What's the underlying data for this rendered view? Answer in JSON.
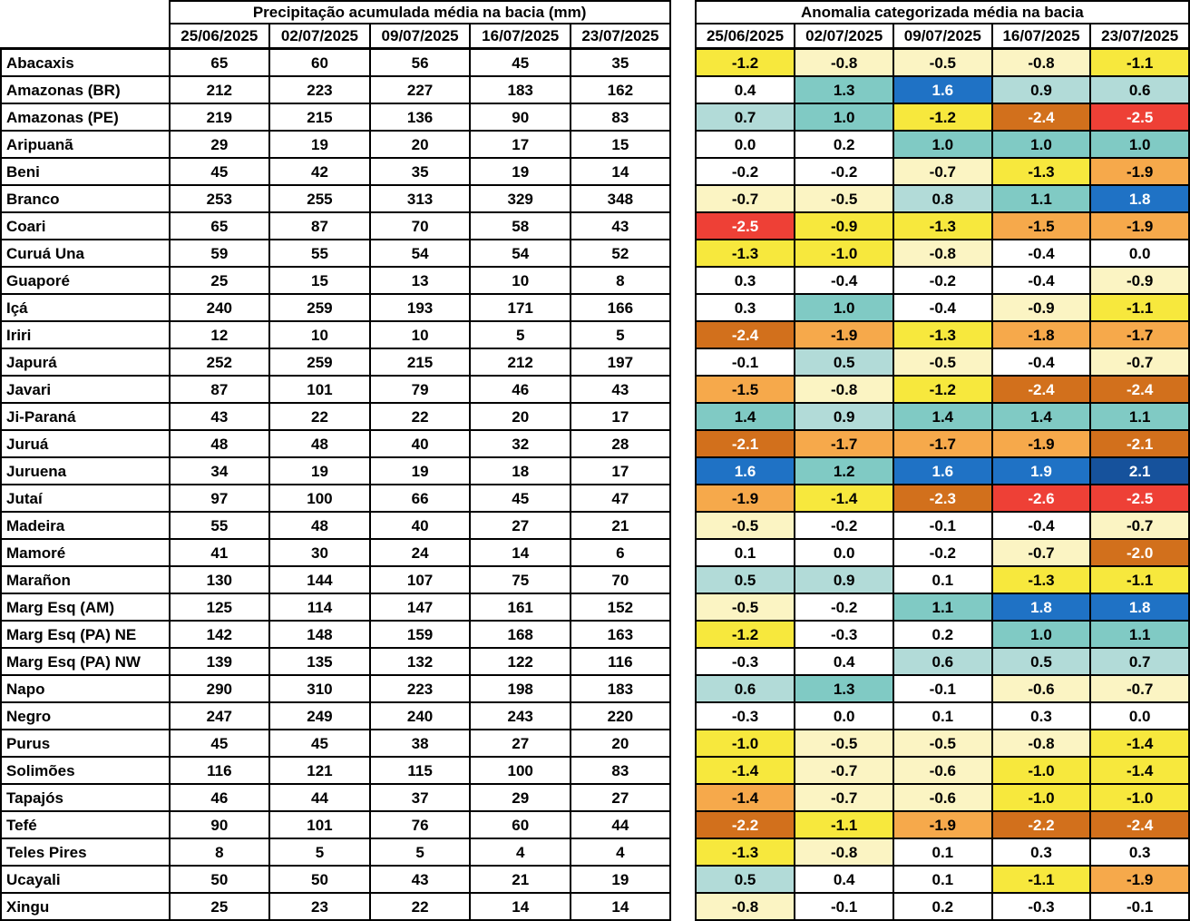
{
  "chart_data": [
    {
      "type": "table",
      "title": "Precipitação acumulada média na bacia (mm)",
      "columns": [
        "25/06/2025",
        "02/07/2025",
        "09/07/2025",
        "16/07/2025",
        "23/07/2025"
      ],
      "row_labels": [
        "Abacaxis",
        "Amazonas (BR)",
        "Amazonas (PE)",
        "Aripuanã",
        "Beni",
        "Branco",
        "Coari",
        "Curuá Una",
        "Guaporé",
        "Içá",
        "Iriri",
        "Japurá",
        "Javari",
        "Ji-Paraná",
        "Juruá",
        "Juruena",
        "Jutaí",
        "Madeira",
        "Mamoré",
        "Marañon",
        "Marg Esq (AM)",
        "Marg Esq (PA) NE",
        "Marg Esq (PA) NW",
        "Napo",
        "Negro",
        "Purus",
        "Solimões",
        "Tapajós",
        "Tefé",
        "Teles Pires",
        "Ucayali",
        "Xingu"
      ],
      "values": [
        [
          65,
          60,
          56,
          45,
          35
        ],
        [
          212,
          223,
          227,
          183,
          162
        ],
        [
          219,
          215,
          136,
          90,
          83
        ],
        [
          29,
          19,
          20,
          17,
          15
        ],
        [
          45,
          42,
          35,
          19,
          14
        ],
        [
          253,
          255,
          313,
          329,
          348
        ],
        [
          65,
          87,
          70,
          58,
          43
        ],
        [
          59,
          55,
          54,
          54,
          52
        ],
        [
          25,
          15,
          13,
          10,
          8
        ],
        [
          240,
          259,
          193,
          171,
          166
        ],
        [
          12,
          10,
          10,
          5,
          5
        ],
        [
          252,
          259,
          215,
          212,
          197
        ],
        [
          87,
          101,
          79,
          46,
          43
        ],
        [
          43,
          22,
          22,
          20,
          17
        ],
        [
          48,
          48,
          40,
          32,
          28
        ],
        [
          34,
          19,
          19,
          18,
          17
        ],
        [
          97,
          100,
          66,
          45,
          47
        ],
        [
          55,
          48,
          40,
          27,
          21
        ],
        [
          41,
          30,
          24,
          14,
          6
        ],
        [
          130,
          144,
          107,
          75,
          70
        ],
        [
          125,
          114,
          147,
          161,
          152
        ],
        [
          142,
          148,
          159,
          168,
          163
        ],
        [
          139,
          135,
          132,
          122,
          116
        ],
        [
          290,
          310,
          223,
          198,
          183
        ],
        [
          247,
          249,
          240,
          243,
          220
        ],
        [
          45,
          45,
          38,
          27,
          20
        ],
        [
          116,
          121,
          115,
          100,
          83
        ],
        [
          46,
          44,
          37,
          29,
          27
        ],
        [
          90,
          101,
          76,
          60,
          44
        ],
        [
          8,
          5,
          5,
          4,
          4
        ],
        [
          50,
          50,
          43,
          21,
          19
        ],
        [
          25,
          23,
          22,
          14,
          14
        ]
      ]
    },
    {
      "type": "heatmap",
      "title": "Anomalia categorizada média na bacia",
      "columns": [
        "25/06/2025",
        "02/07/2025",
        "09/07/2025",
        "16/07/2025",
        "23/07/2025"
      ],
      "row_labels": [
        "Abacaxis",
        "Amazonas (BR)",
        "Amazonas (PE)",
        "Aripuanã",
        "Beni",
        "Branco",
        "Coari",
        "Curuá Una",
        "Guaporé",
        "Içá",
        "Iriri",
        "Japurá",
        "Javari",
        "Ji-Paraná",
        "Juruá",
        "Juruena",
        "Jutaí",
        "Madeira",
        "Mamoré",
        "Marañon",
        "Marg Esq (AM)",
        "Marg Esq (PA) NE",
        "Marg Esq (PA) NW",
        "Napo",
        "Negro",
        "Purus",
        "Solimões",
        "Tapajós",
        "Tefé",
        "Teles Pires",
        "Ucayali",
        "Xingu"
      ],
      "values": [
        [
          "-1.2",
          "-0.8",
          "-0.5",
          "-0.8",
          "-1.1"
        ],
        [
          "0.4",
          "1.3",
          "1.6",
          "0.9",
          "0.6"
        ],
        [
          "0.7",
          "1.0",
          "-1.2",
          "-2.4",
          "-2.5"
        ],
        [
          "0.0",
          "0.2",
          "1.0",
          "1.0",
          "1.0"
        ],
        [
          "-0.2",
          "-0.2",
          "-0.7",
          "-1.3",
          "-1.9"
        ],
        [
          "-0.7",
          "-0.5",
          "0.8",
          "1.1",
          "1.8"
        ],
        [
          "-2.5",
          "-0.9",
          "-1.3",
          "-1.5",
          "-1.9"
        ],
        [
          "-1.3",
          "-1.0",
          "-0.8",
          "-0.4",
          "0.0"
        ],
        [
          "0.3",
          "-0.4",
          "-0.2",
          "-0.4",
          "-0.9"
        ],
        [
          "0.3",
          "1.0",
          "-0.4",
          "-0.9",
          "-1.1"
        ],
        [
          "-2.4",
          "-1.9",
          "-1.3",
          "-1.8",
          "-1.7"
        ],
        [
          "-0.1",
          "0.5",
          "-0.5",
          "-0.4",
          "-0.7"
        ],
        [
          "-1.5",
          "-0.8",
          "-1.2",
          "-2.4",
          "-2.4"
        ],
        [
          "1.4",
          "0.9",
          "1.4",
          "1.4",
          "1.1"
        ],
        [
          "-2.1",
          "-1.7",
          "-1.7",
          "-1.9",
          "-2.1"
        ],
        [
          "1.6",
          "1.2",
          "1.6",
          "1.9",
          "2.1"
        ],
        [
          "-1.9",
          "-1.4",
          "-2.3",
          "-2.6",
          "-2.5"
        ],
        [
          "-0.5",
          "-0.2",
          "-0.1",
          "-0.4",
          "-0.7"
        ],
        [
          "0.1",
          "0.0",
          "-0.2",
          "-0.7",
          "-2.0"
        ],
        [
          "0.5",
          "0.9",
          "0.1",
          "-1.3",
          "-1.1"
        ],
        [
          "-0.5",
          "-0.2",
          "1.1",
          "1.8",
          "1.8"
        ],
        [
          "-1.2",
          "-0.3",
          "0.2",
          "1.0",
          "1.1"
        ],
        [
          "-0.3",
          "0.4",
          "0.6",
          "0.5",
          "0.7"
        ],
        [
          "0.6",
          "1.3",
          "-0.1",
          "-0.6",
          "-0.7"
        ],
        [
          "-0.3",
          "0.0",
          "0.1",
          "0.3",
          "0.0"
        ],
        [
          "-1.0",
          "-0.5",
          "-0.5",
          "-0.8",
          "-1.4"
        ],
        [
          "-1.4",
          "-0.7",
          "-0.6",
          "-1.0",
          "-1.4"
        ],
        [
          "-1.4",
          "-0.7",
          "-0.6",
          "-1.0",
          "-1.0"
        ],
        [
          "-2.2",
          "-1.1",
          "-1.9",
          "-2.2",
          "-2.4"
        ],
        [
          "-1.3",
          "-0.8",
          "0.1",
          "0.3",
          "0.3"
        ],
        [
          "0.5",
          "0.4",
          "0.1",
          "-1.1",
          "-1.9"
        ],
        [
          "-0.8",
          "-0.1",
          "0.2",
          "-0.3",
          "-0.1"
        ]
      ],
      "cell_colors": [
        [
          "Y",
          "PY",
          "PY",
          "PY",
          "Y"
        ],
        [
          "W",
          "T",
          "B",
          "LT",
          "LT"
        ],
        [
          "LT",
          "T",
          "Y",
          "DO",
          "R"
        ],
        [
          "W",
          "W",
          "T",
          "T",
          "T"
        ],
        [
          "W",
          "W",
          "PY",
          "Y",
          "O"
        ],
        [
          "PY",
          "PY",
          "LT",
          "T",
          "B"
        ],
        [
          "R",
          "Y",
          "Y",
          "O",
          "O"
        ],
        [
          "Y",
          "Y",
          "PY",
          "W",
          "W"
        ],
        [
          "W",
          "W",
          "W",
          "W",
          "PY"
        ],
        [
          "W",
          "T",
          "W",
          "PY",
          "Y"
        ],
        [
          "DO",
          "O",
          "Y",
          "O",
          "O"
        ],
        [
          "W",
          "LT",
          "PY",
          "W",
          "PY"
        ],
        [
          "O",
          "PY",
          "Y",
          "DO",
          "DO"
        ],
        [
          "T",
          "LT",
          "T",
          "T",
          "T"
        ],
        [
          "DO",
          "O",
          "O",
          "O",
          "DO"
        ],
        [
          "B",
          "T",
          "B",
          "B",
          "DB"
        ],
        [
          "O",
          "Y",
          "DO",
          "R",
          "R"
        ],
        [
          "PY",
          "W",
          "W",
          "W",
          "PY"
        ],
        [
          "W",
          "W",
          "W",
          "PY",
          "DO"
        ],
        [
          "LT",
          "LT",
          "W",
          "Y",
          "Y"
        ],
        [
          "PY",
          "W",
          "T",
          "B",
          "B"
        ],
        [
          "Y",
          "W",
          "W",
          "T",
          "T"
        ],
        [
          "W",
          "W",
          "LT",
          "LT",
          "LT"
        ],
        [
          "LT",
          "T",
          "W",
          "PY",
          "PY"
        ],
        [
          "W",
          "W",
          "W",
          "W",
          "W"
        ],
        [
          "Y",
          "PY",
          "PY",
          "PY",
          "Y"
        ],
        [
          "Y",
          "PY",
          "PY",
          "Y",
          "Y"
        ],
        [
          "O",
          "PY",
          "PY",
          "Y",
          "Y"
        ],
        [
          "DO",
          "Y",
          "O",
          "DO",
          "DO"
        ],
        [
          "Y",
          "PY",
          "W",
          "W",
          "W"
        ],
        [
          "LT",
          "W",
          "W",
          "Y",
          "O"
        ],
        [
          "PY",
          "W",
          "W",
          "W",
          "W"
        ]
      ],
      "palette": {
        "W": "#FFFFFF",
        "PY": "#FBF4C3",
        "Y": "#F7E83D",
        "O": "#F6A94B",
        "DO": "#D2701C",
        "R": "#EE4036",
        "LT": "#B2DBD8",
        "T": "#80CAC4",
        "B": "#1F72C5",
        "DB": "#16529C"
      },
      "light_text_colors": [
        "DO",
        "R",
        "B",
        "DB"
      ],
      "legend_note": "",
      "border_color": "#000000"
    }
  ]
}
